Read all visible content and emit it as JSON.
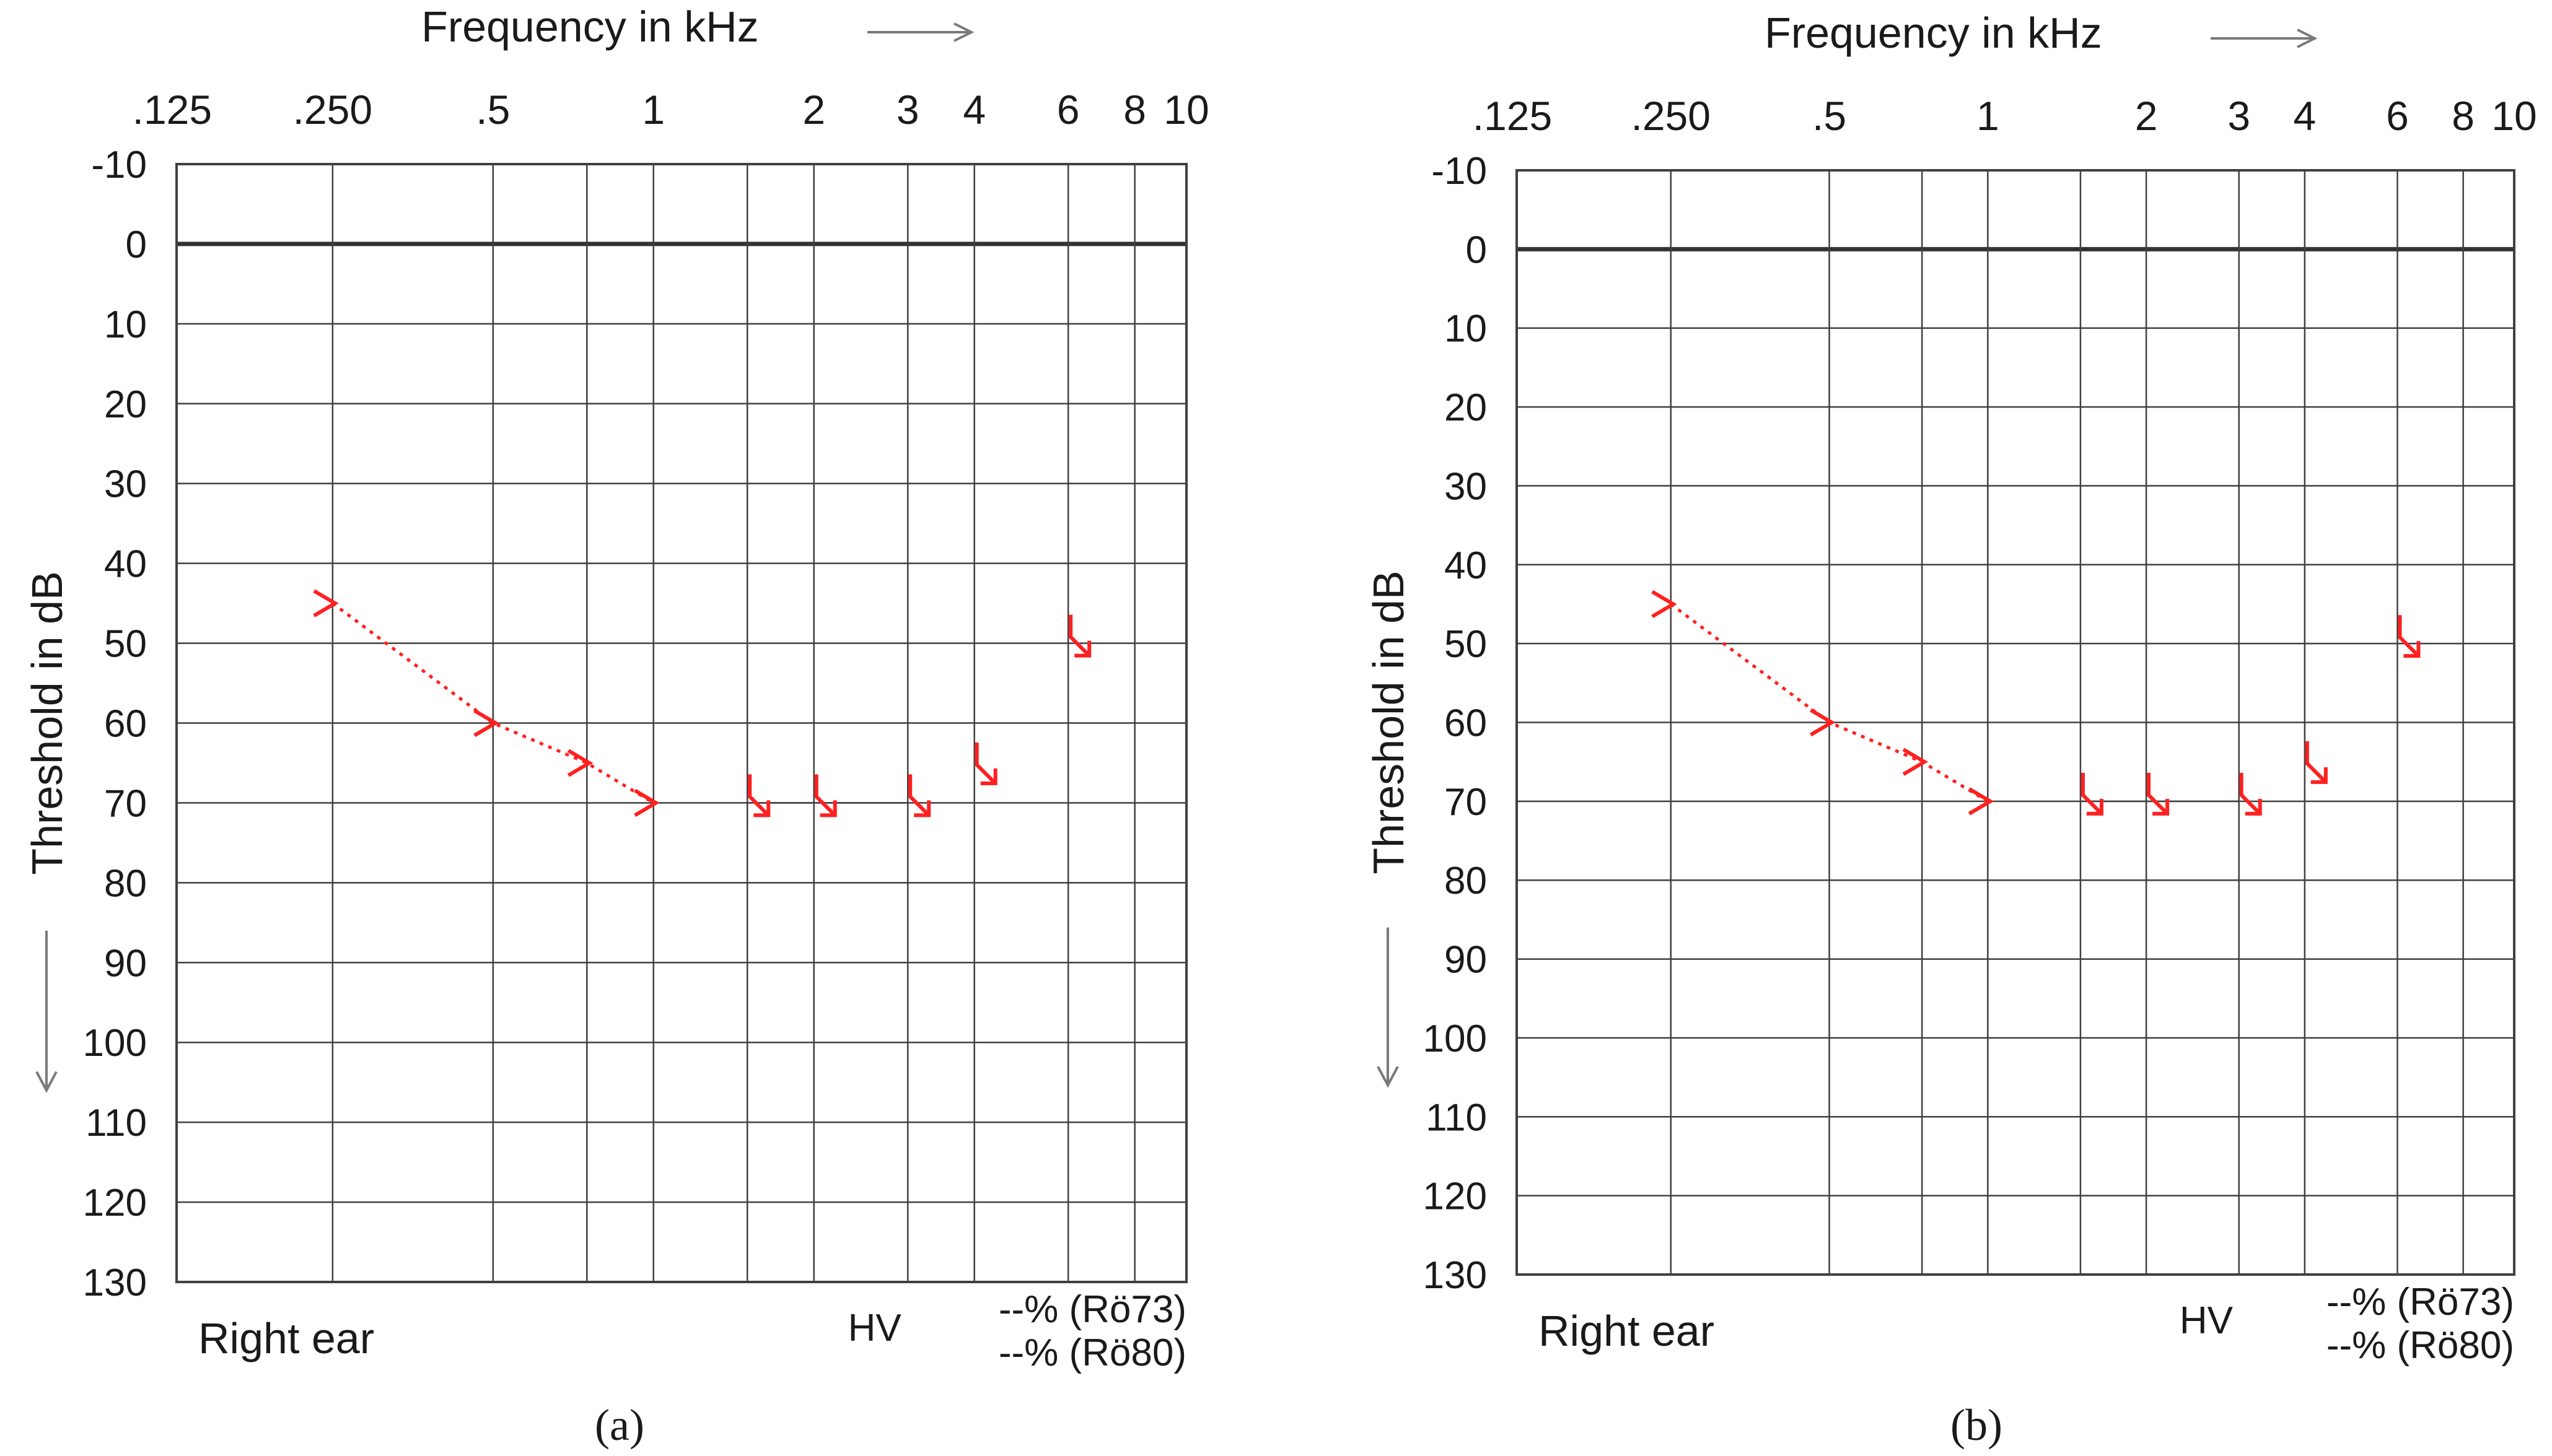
{
  "colors": {
    "grid": "#404040",
    "zero_line": "#333333",
    "marker": "#ff2020",
    "axis_arrow": "#7a7a7a",
    "text": "#1a1a1a"
  },
  "chart_data": [
    {
      "type": "line",
      "panel_label": "a",
      "title": "Frequency   in kHz",
      "xlabel": "Frequency   in kHz",
      "ylabel": "Threshold  in dB",
      "x_scale": "log",
      "x_ticks": [
        0.125,
        0.25,
        0.5,
        1,
        2,
        3,
        4,
        6,
        8,
        10
      ],
      "x_tick_labels": [
        ".125",
        ".250",
        ".5",
        "1",
        "2",
        "3",
        "4",
        "6",
        "8",
        "10"
      ],
      "ylim": [
        -10,
        130
      ],
      "y_inverted": true,
      "y_ticks": [
        -10,
        0,
        10,
        20,
        30,
        40,
        50,
        60,
        70,
        80,
        90,
        100,
        110,
        120,
        130
      ],
      "y_tick_labels": [
        "-10",
        "0",
        "10",
        "20",
        "30",
        "40",
        "50",
        "60",
        "70",
        "80",
        "90",
        "100",
        "110",
        "120",
        "130"
      ],
      "ear_label": "Right ear",
      "footer": {
        "hv_label": "HV",
        "line1": "--% (Rö73)",
        "line2": "--% (Rö80)"
      },
      "series": [
        {
          "name": "bone conduction (unmasked)",
          "marker": ">",
          "connected": true,
          "x": [
            0.25,
            0.5,
            0.75,
            1
          ],
          "y": [
            45,
            60,
            65,
            70
          ]
        },
        {
          "name": "bone conduction (no response)",
          "marker": "arrow-down-right",
          "connected": true,
          "x": [
            1.5,
            2,
            3
          ],
          "y": [
            70,
            70,
            70
          ]
        },
        {
          "name": "bone conduction (no response, isolated)",
          "marker": "arrow-down-right",
          "connected": false,
          "x": [
            4,
            6
          ],
          "y": [
            66,
            50
          ]
        }
      ]
    },
    {
      "type": "line",
      "panel_label": "b",
      "title": "Frequency   in kHz",
      "xlabel": "Frequency   in kHz",
      "ylabel": "Threshold  in dB",
      "x_scale": "log",
      "x_ticks": [
        0.125,
        0.25,
        0.5,
        1,
        2,
        3,
        4,
        6,
        8,
        10
      ],
      "x_tick_labels": [
        ".125",
        ".250",
        ".5",
        "1",
        "2",
        "3",
        "4",
        "6",
        "8",
        "10"
      ],
      "ylim": [
        -10,
        130
      ],
      "y_inverted": true,
      "y_ticks": [
        -10,
        0,
        10,
        20,
        30,
        40,
        50,
        60,
        70,
        80,
        90,
        100,
        110,
        120,
        130
      ],
      "y_tick_labels": [
        "-10",
        "0",
        "10",
        "20",
        "30",
        "40",
        "50",
        "60",
        "70",
        "80",
        "90",
        "100",
        "110",
        "120",
        "130"
      ],
      "ear_label": "Right ear",
      "footer": {
        "hv_label": "HV",
        "line1": "--% (Rö73)",
        "line2": "--% (Rö80)"
      },
      "series": [
        {
          "name": "bone conduction (unmasked)",
          "marker": ">",
          "connected": true,
          "x": [
            0.25,
            0.5,
            0.75,
            1
          ],
          "y": [
            45,
            60,
            65,
            70
          ]
        },
        {
          "name": "bone conduction (no response)",
          "marker": "arrow-down-right",
          "connected": true,
          "x": [
            1.5,
            2,
            3
          ],
          "y": [
            70,
            70,
            70
          ]
        },
        {
          "name": "bone conduction (no response, isolated)",
          "marker": "arrow-down-right",
          "connected": false,
          "x": [
            4,
            6
          ],
          "y": [
            66,
            50
          ]
        }
      ]
    }
  ]
}
